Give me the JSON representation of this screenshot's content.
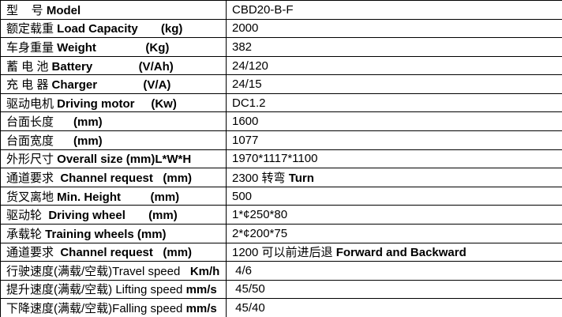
{
  "colors": {
    "border": "#000000",
    "text": "#000000",
    "background": "#ffffff"
  },
  "table": {
    "columns": [
      "parameter",
      "value"
    ],
    "rows": [
      {
        "label_parts": [
          {
            "t": "型    号 ",
            "b": false
          },
          {
            "t": "Model",
            "b": true
          }
        ],
        "value_parts": [
          {
            "t": "CBD20-B-F",
            "b": false
          }
        ]
      },
      {
        "label_parts": [
          {
            "t": "额定载重 ",
            "b": false
          },
          {
            "t": "Load Capacity",
            "b": true
          },
          {
            "t": "       ",
            "b": false
          },
          {
            "t": "(kg)",
            "b": true
          }
        ],
        "value_parts": [
          {
            "t": "2000",
            "b": false
          }
        ]
      },
      {
        "label_parts": [
          {
            "t": "车身重量 ",
            "b": false
          },
          {
            "t": "Weight",
            "b": true
          },
          {
            "t": "               ",
            "b": false
          },
          {
            "t": "(Kg)",
            "b": true
          }
        ],
        "value_parts": [
          {
            "t": "382",
            "b": false
          }
        ]
      },
      {
        "label_parts": [
          {
            "t": "蓄 电 池 ",
            "b": false
          },
          {
            "t": "Battery",
            "b": true
          },
          {
            "t": "              ",
            "b": false
          },
          {
            "t": "(V/Ah)",
            "b": true
          }
        ],
        "value_parts": [
          {
            "t": "24/120",
            "b": false
          }
        ]
      },
      {
        "label_parts": [
          {
            "t": "充 电 器 ",
            "b": false
          },
          {
            "t": "Charger",
            "b": true
          },
          {
            "t": "              ",
            "b": false
          },
          {
            "t": "(V/A)",
            "b": true
          }
        ],
        "value_parts": [
          {
            "t": "24/15",
            "b": false
          }
        ]
      },
      {
        "label_parts": [
          {
            "t": "驱动电机 ",
            "b": false
          },
          {
            "t": "Driving motor",
            "b": true
          },
          {
            "t": "     ",
            "b": false
          },
          {
            "t": "(Kw)",
            "b": true
          }
        ],
        "value_parts": [
          {
            "t": "DC1.2",
            "b": false
          }
        ]
      },
      {
        "label_parts": [
          {
            "t": "台面长度      ",
            "b": false
          },
          {
            "t": "(mm)",
            "b": true
          }
        ],
        "value_parts": [
          {
            "t": "1600",
            "b": false
          }
        ]
      },
      {
        "label_parts": [
          {
            "t": "台面宽度      ",
            "b": false
          },
          {
            "t": "(mm)",
            "b": true
          }
        ],
        "value_parts": [
          {
            "t": "1077",
            "b": false
          }
        ]
      },
      {
        "label_parts": [
          {
            "t": "外形尺寸 ",
            "b": false
          },
          {
            "t": "Overall size (mm)L*W*H",
            "b": true
          }
        ],
        "value_parts": [
          {
            "t": "1970*1117*1100",
            "b": false
          }
        ]
      },
      {
        "label_parts": [
          {
            "t": "通道要求  ",
            "b": false
          },
          {
            "t": "Channel request",
            "b": true
          },
          {
            "t": "   ",
            "b": false
          },
          {
            "t": "(mm)",
            "b": true
          }
        ],
        "value_parts": [
          {
            "t": "2300 转弯 ",
            "b": false
          },
          {
            "t": "Turn",
            "b": true
          }
        ]
      },
      {
        "label_parts": [
          {
            "t": "货叉离地 ",
            "b": false
          },
          {
            "t": "Min. Height",
            "b": true
          },
          {
            "t": "         ",
            "b": false
          },
          {
            "t": "(mm)",
            "b": true
          }
        ],
        "value_parts": [
          {
            "t": "500",
            "b": false
          }
        ]
      },
      {
        "label_parts": [
          {
            "t": "驱动轮  ",
            "b": false
          },
          {
            "t": "Driving wheel",
            "b": true
          },
          {
            "t": "       ",
            "b": false
          },
          {
            "t": "(mm)",
            "b": true
          }
        ],
        "value_parts": [
          {
            "t": "1*¢250*80",
            "b": false
          }
        ]
      },
      {
        "label_parts": [
          {
            "t": "承载轮 ",
            "b": false
          },
          {
            "t": "Training wheels (mm)",
            "b": true
          }
        ],
        "value_parts": [
          {
            "t": "2*¢200*75",
            "b": false
          }
        ]
      },
      {
        "label_parts": [
          {
            "t": "通道要求  ",
            "b": false
          },
          {
            "t": "Channel request",
            "b": true
          },
          {
            "t": "   ",
            "b": false
          },
          {
            "t": "(mm)",
            "b": true
          }
        ],
        "value_parts": [
          {
            "t": "1200 可以前进后退 ",
            "b": false
          },
          {
            "t": "Forward and Backward",
            "b": true
          }
        ]
      },
      {
        "label_parts": [
          {
            "t": "行驶速度(满载/空载)Travel speed   ",
            "b": false
          },
          {
            "t": "Km/h",
            "b": true
          }
        ],
        "value_parts": [
          {
            "t": " 4/6",
            "b": false
          }
        ]
      },
      {
        "label_parts": [
          {
            "t": "提升速度(满载/空载) Lifting speed ",
            "b": false
          },
          {
            "t": "mm/s",
            "b": true
          }
        ],
        "value_parts": [
          {
            "t": " 45/50",
            "b": false
          }
        ]
      },
      {
        "label_parts": [
          {
            "t": "下降速度(满载/空载)Falling speed ",
            "b": false
          },
          {
            "t": "mm/s",
            "b": true
          }
        ],
        "value_parts": [
          {
            "t": " 45/40",
            "b": false
          }
        ]
      }
    ]
  }
}
